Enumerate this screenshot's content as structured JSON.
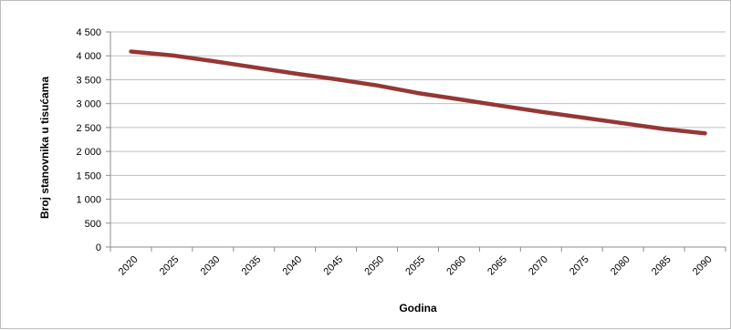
{
  "chart_data": {
    "type": "line",
    "title": "",
    "xlabel": "Godina",
    "ylabel": "Broj stanovnika u tisućama",
    "x": [
      2020,
      2025,
      2030,
      2035,
      2040,
      2045,
      2050,
      2055,
      2060,
      2065,
      2070,
      2075,
      2080,
      2085,
      2090
    ],
    "x_tick_labels": [
      "2020",
      "2025",
      "2030",
      "2035",
      "2040",
      "2045",
      "2050",
      "2055",
      "2060",
      "2065",
      "2070",
      "2075",
      "2080",
      "2085",
      "2090"
    ],
    "series": [
      {
        "values": [
          4090,
          4010,
          3890,
          3760,
          3630,
          3510,
          3380,
          3220,
          3090,
          2960,
          2830,
          2710,
          2590,
          2470,
          2380
        ],
        "color": "#953735"
      }
    ],
    "ylim": [
      0,
      4500
    ],
    "y_ticks": [
      0,
      500,
      1000,
      1500,
      2000,
      2500,
      3000,
      3500,
      4000,
      4500
    ],
    "y_tick_labels": [
      "0",
      "500",
      "1 000",
      "1 500",
      "2 000",
      "2 500",
      "3 000",
      "3 500",
      "4 000",
      "4 500"
    ],
    "grid": true,
    "legend": false
  }
}
